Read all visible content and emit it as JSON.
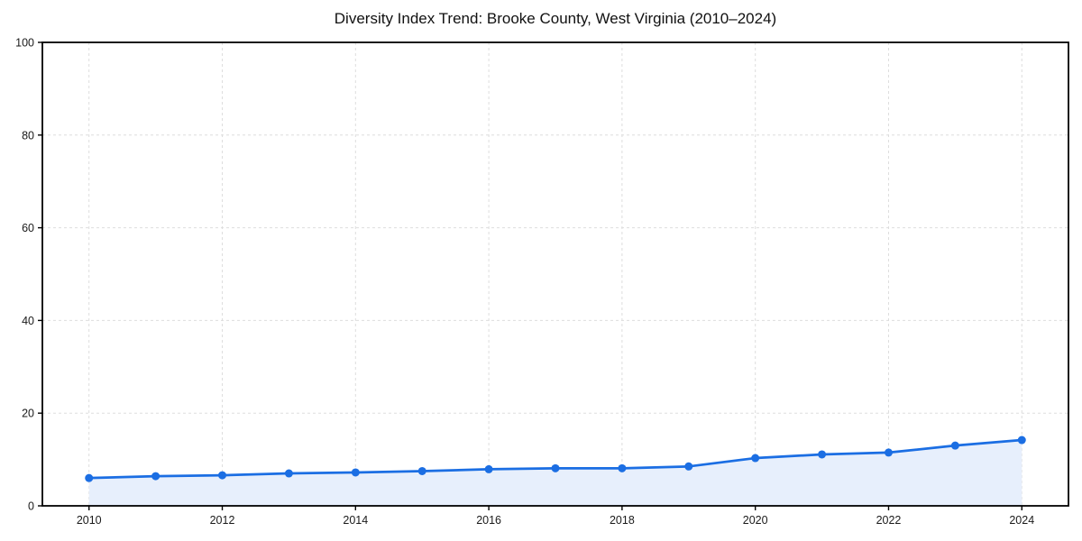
{
  "chart_data": {
    "type": "line",
    "title": "Diversity Index Trend: Brooke County, West Virginia (2010–2024)",
    "xlabel": "",
    "ylabel": "",
    "x": [
      2010,
      2011,
      2012,
      2013,
      2014,
      2015,
      2016,
      2017,
      2018,
      2019,
      2020,
      2021,
      2022,
      2023,
      2024
    ],
    "series": [
      {
        "name": "Diversity Index",
        "values": [
          6.0,
          6.4,
          6.6,
          7.0,
          7.2,
          7.5,
          7.9,
          8.1,
          8.1,
          8.5,
          10.3,
          11.1,
          11.5,
          13.0,
          14.2
        ]
      }
    ],
    "xlim": [
      2009.3,
      2024.7
    ],
    "ylim": [
      0,
      100
    ],
    "x_ticks": [
      2010,
      2012,
      2014,
      2016,
      2018,
      2020,
      2022,
      2024
    ],
    "y_ticks": [
      0,
      20,
      40,
      60,
      80,
      100
    ],
    "grid": true,
    "grid_style": "dashed",
    "legend": false,
    "marker": "circle",
    "area_fill": true
  },
  "style": {
    "line_color": "#1b6ee3",
    "marker_color": "#1b6ee3",
    "fill_color": "#e7effc",
    "grid_color": "#dddddd",
    "spine_color": "#000000",
    "tick_color": "#000000",
    "text_color": "#1a1a1a",
    "background": "#ffffff"
  }
}
